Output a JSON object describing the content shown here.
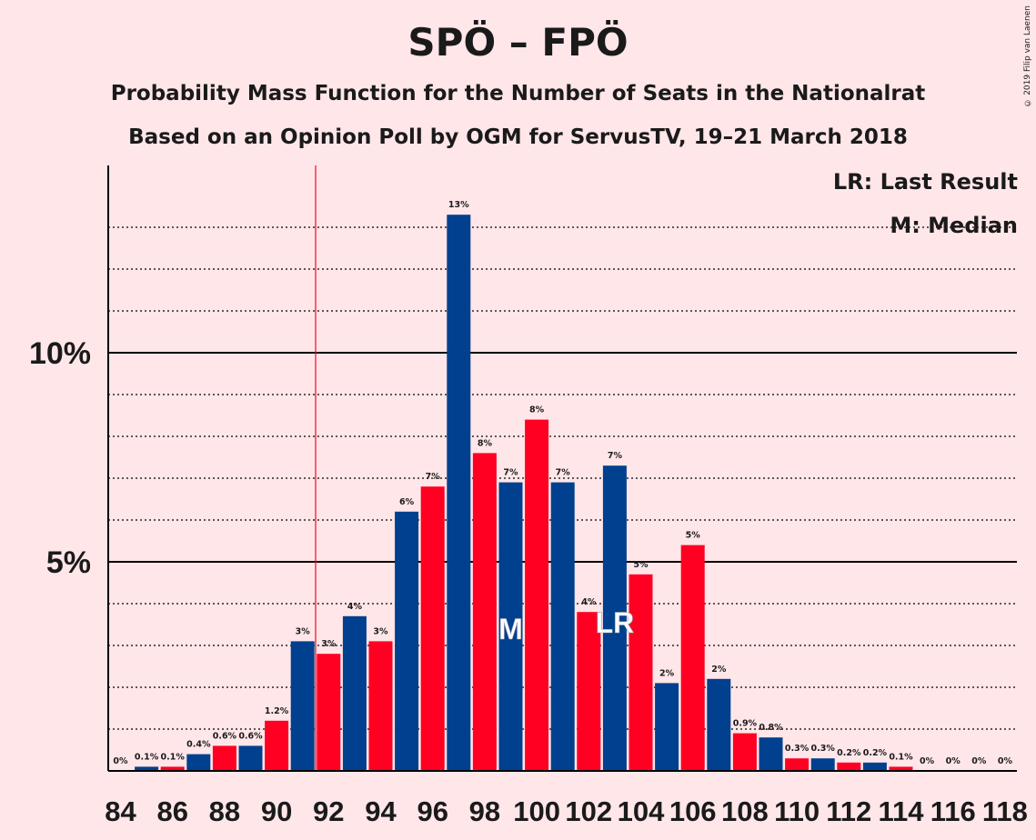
{
  "header": {
    "title": "SPÖ – FPÖ",
    "subtitle1": "Probability Mass Function for the Number of Seats in the Nationalrat",
    "subtitle2": "Based on an Opinion Poll by OGM for ServusTV, 19–21 March 2018",
    "credit": "© 2019 Filip van Laenen"
  },
  "legend": {
    "last_result": "LR: Last Result",
    "median": "M: Median"
  },
  "colors": {
    "blue": "#00408f",
    "red": "#ff0022",
    "background": "#ffe6e9"
  },
  "chart_data": {
    "type": "bar",
    "categories": [
      84,
      85,
      86,
      87,
      88,
      89,
      90,
      91,
      92,
      93,
      94,
      95,
      96,
      97,
      98,
      99,
      100,
      101,
      102,
      103,
      104,
      105,
      106,
      107,
      108,
      109,
      110,
      111,
      112,
      113,
      114,
      115,
      116,
      117,
      118
    ],
    "values": [
      0,
      0.1,
      0.1,
      0.4,
      0.6,
      0.6,
      1.2,
      3.1,
      2.8,
      3.7,
      3.1,
      6.2,
      6.8,
      13.3,
      7.6,
      6.9,
      8.4,
      6.9,
      3.8,
      7.3,
      4.7,
      2.1,
      5.4,
      2.2,
      0.9,
      0.8,
      0.3,
      0.3,
      0.2,
      0.2,
      0.1,
      0,
      0,
      0,
      0
    ],
    "labels": [
      "0%",
      "0.1%",
      "0.1%",
      "0.4%",
      "0.6%",
      "0.6%",
      "1.2%",
      "3%",
      "3%",
      "4%",
      "3%",
      "6%",
      "7%",
      "13%",
      "8%",
      "7%",
      "8%",
      "7%",
      "4%",
      "7%",
      "5%",
      "2%",
      "5%",
      "2%",
      "0.9%",
      "0.8%",
      "0.3%",
      "0.3%",
      "0.2%",
      "0.2%",
      "0.1%",
      "0%",
      "0%",
      "0%",
      "0%"
    ],
    "x_tick_labels": [
      "84",
      "86",
      "88",
      "90",
      "92",
      "94",
      "96",
      "98",
      "100",
      "102",
      "104",
      "106",
      "108",
      "110",
      "112",
      "114",
      "116",
      "118"
    ],
    "y_tick_labels": [
      "5%",
      "10%"
    ],
    "ylim": [
      0,
      14.5
    ],
    "last_result": 92,
    "median": 99,
    "median_marker": "M",
    "last_result_marker": "LR"
  }
}
